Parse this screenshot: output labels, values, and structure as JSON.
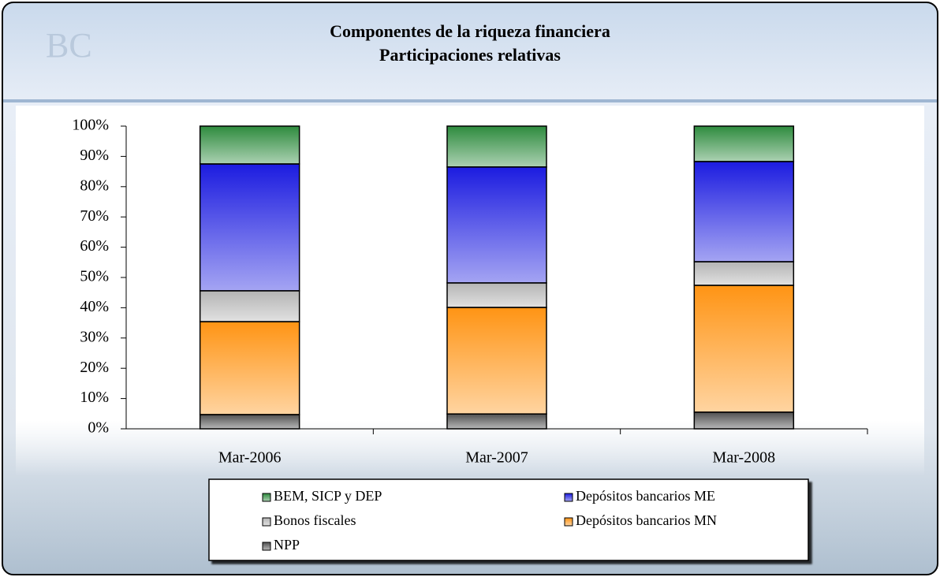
{
  "chart_data": {
    "type": "stacked-bar",
    "title": "Componentes de la riqueza financiera",
    "subtitle": "Participaciones relativas",
    "categories": [
      "Mar-2006",
      "Mar-2007",
      "Mar-2008"
    ],
    "series": [
      {
        "name": "BEM, SICP y DEP",
        "color": "#2e8b3e",
        "values": [
          12.5,
          13.5,
          11.7
        ]
      },
      {
        "name": "Depósitos bancarios ME",
        "color": "#1c1ce0",
        "values": [
          41.9,
          38.3,
          33.1
        ]
      },
      {
        "name": "Bonos fiscales",
        "color": "#b4b4b4",
        "values": [
          10.2,
          8.1,
          7.8
        ]
      },
      {
        "name": "Depósitos bancarios MN",
        "color": "#ff9414",
        "values": [
          30.7,
          35.2,
          41.9
        ]
      },
      {
        "name": "NPP",
        "color": "#505050",
        "values": [
          4.7,
          4.9,
          5.5
        ]
      }
    ],
    "ylim": [
      0,
      100
    ],
    "yticks": [
      {
        "value": 0,
        "label": "0%"
      },
      {
        "value": 10,
        "label": "10%"
      },
      {
        "value": 20,
        "label": "20%"
      },
      {
        "value": 30,
        "label": "30%"
      },
      {
        "value": 40,
        "label": "40%"
      },
      {
        "value": 50,
        "label": "50%"
      },
      {
        "value": 60,
        "label": "60%"
      },
      {
        "value": 70,
        "label": "70%"
      },
      {
        "value": 80,
        "label": "80%"
      },
      {
        "value": 90,
        "label": "90%"
      },
      {
        "value": 100,
        "label": "100%"
      }
    ],
    "grid": false
  }
}
